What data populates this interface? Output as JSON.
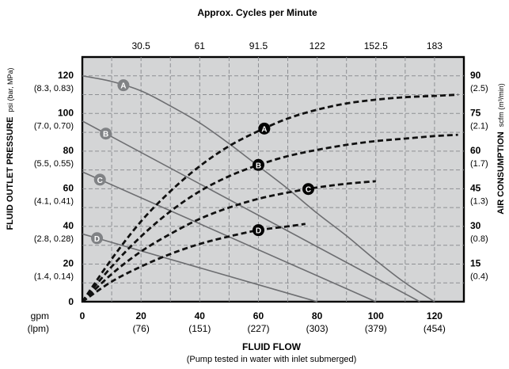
{
  "chart_data": {
    "type": "line",
    "top_title": "Approx. Cycles per Minute",
    "top_ticks": [
      {
        "x": 20,
        "label": "30.5"
      },
      {
        "x": 40,
        "label": "61"
      },
      {
        "x": 60,
        "label": "91.5"
      },
      {
        "x": 80,
        "label": "122"
      },
      {
        "x": 100,
        "label": "152.5"
      },
      {
        "x": 120,
        "label": "183"
      }
    ],
    "xlim": [
      0,
      130
    ],
    "x_ticks": [
      {
        "x": 0,
        "main": "0",
        "sub": ""
      },
      {
        "x": 20,
        "main": "20",
        "sub": "(76)"
      },
      {
        "x": 40,
        "main": "40",
        "sub": "(151)"
      },
      {
        "x": 60,
        "main": "60",
        "sub": "(227)"
      },
      {
        "x": 80,
        "main": "80",
        "sub": "(303)"
      },
      {
        "x": 100,
        "main": "100",
        "sub": "(379)"
      },
      {
        "x": 120,
        "main": "120",
        "sub": "(454)"
      }
    ],
    "x_unit_main": "gpm",
    "x_unit_sub": "(lpm)",
    "xlabel": "FLUID FLOW",
    "xlabel_sub": "(Pump tested in water with inlet submerged)",
    "ylim_left": [
      0,
      130
    ],
    "y_left_ticks": [
      {
        "y": 0,
        "main": "0",
        "sub": ""
      },
      {
        "y": 20,
        "main": "20",
        "sub": "(1.4, 0.14)"
      },
      {
        "y": 40,
        "main": "40",
        "sub": "(2.8, 0.28)"
      },
      {
        "y": 60,
        "main": "60",
        "sub": "(4.1, 0.41)"
      },
      {
        "y": 80,
        "main": "80",
        "sub": "(5.5, 0.55)"
      },
      {
        "y": 100,
        "main": "100",
        "sub": "(7.0, 0.70)"
      },
      {
        "y": 120,
        "main": "120",
        "sub": "(8.3, 0.83)"
      }
    ],
    "ylabel_left": "FLUID OUTLET PRESSURE",
    "ylabel_left_unit": "psi (bar, MPa)",
    "ylim_right": [
      0,
      97.5
    ],
    "y_right_ticks": [
      {
        "y": 15,
        "main": "15",
        "sub": "(0.4)"
      },
      {
        "y": 30,
        "main": "30",
        "sub": "(0.8)"
      },
      {
        "y": 45,
        "main": "45",
        "sub": "(1.3)"
      },
      {
        "y": 60,
        "main": "60",
        "sub": "(1.7)"
      },
      {
        "y": 75,
        "main": "75",
        "sub": "(2.1)"
      },
      {
        "y": 90,
        "main": "90",
        "sub": "(2.5)"
      }
    ],
    "ylabel_right": "AIR CONSUMPTION",
    "ylabel_right_unit": "scfm (m³/min)",
    "grid": true,
    "series": [
      {
        "name": "A",
        "kind": "fluid pressure",
        "axis": "left",
        "style": "solid",
        "x": [
          0,
          10,
          20,
          30,
          40,
          50,
          60,
          70,
          80,
          90,
          100,
          110,
          120
        ],
        "y": [
          120,
          117,
          112,
          104,
          95,
          84,
          72,
          60,
          47,
          35,
          22,
          10,
          0
        ],
        "label_x": 14
      },
      {
        "name": "B",
        "kind": "fluid pressure",
        "axis": "left",
        "style": "solid",
        "x": [
          0,
          115
        ],
        "y": [
          96,
          0
        ],
        "label_x": 8
      },
      {
        "name": "C",
        "kind": "fluid pressure",
        "axis": "left",
        "style": "solid",
        "x": [
          0,
          100
        ],
        "y": [
          69,
          0
        ],
        "label_x": 6
      },
      {
        "name": "D",
        "kind": "fluid pressure",
        "axis": "left",
        "style": "solid",
        "x": [
          0,
          80
        ],
        "y": [
          36,
          0
        ],
        "label_x": 5
      },
      {
        "name": "A",
        "kind": "air consumption",
        "axis": "right",
        "style": "dashed",
        "x": [
          0,
          10,
          20,
          30,
          40,
          50,
          60,
          70,
          80,
          90,
          100,
          110,
          120,
          128
        ],
        "y": [
          0,
          17,
          32,
          44,
          54,
          62,
          68,
          73,
          76.5,
          79,
          80.5,
          81.5,
          82,
          82.5
        ],
        "label_x": 62
      },
      {
        "name": "B",
        "kind": "air consumption",
        "axis": "right",
        "style": "dashed",
        "x": [
          0,
          10,
          20,
          30,
          40,
          50,
          60,
          70,
          80,
          90,
          100,
          110,
          120,
          128
        ],
        "y": [
          0,
          14,
          26,
          36,
          44,
          50,
          54.5,
          58,
          60.5,
          62.5,
          64,
          65,
          66,
          66.5
        ],
        "label_x": 60
      },
      {
        "name": "C",
        "kind": "air consumption",
        "axis": "right",
        "style": "dashed",
        "x": [
          0,
          10,
          20,
          30,
          40,
          50,
          60,
          70,
          80,
          90,
          100
        ],
        "y": [
          0,
          11,
          20,
          27,
          33,
          37.5,
          41,
          43.5,
          45.5,
          47,
          48
        ],
        "label_x": 77
      },
      {
        "name": "D",
        "kind": "air consumption",
        "axis": "right",
        "style": "dashed",
        "x": [
          0,
          10,
          20,
          30,
          40,
          50,
          60,
          70,
          76
        ],
        "y": [
          0,
          8,
          14,
          19,
          23,
          26,
          28.5,
          30,
          31
        ],
        "label_x": 60
      }
    ]
  }
}
